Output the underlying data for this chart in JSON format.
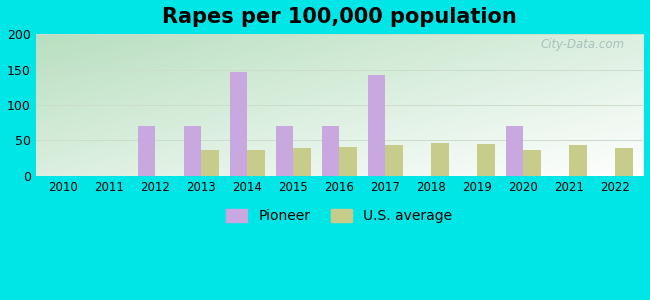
{
  "title": "Rapes per 100,000 population",
  "years": [
    2010,
    2011,
    2012,
    2013,
    2014,
    2015,
    2016,
    2017,
    2018,
    2019,
    2020,
    2021,
    2022
  ],
  "pioneer": [
    0,
    0,
    71,
    71,
    146,
    70,
    70,
    142,
    0,
    0,
    70,
    0,
    0
  ],
  "us_average": [
    0,
    0,
    0,
    36,
    37,
    39,
    41,
    44,
    46,
    45,
    37,
    44,
    40
  ],
  "pioneer_color": "#c9a8e0",
  "us_avg_color": "#c8cc8a",
  "outer_bg": "#00e5e5",
  "ylim": [
    0,
    200
  ],
  "yticks": [
    0,
    50,
    100,
    150,
    200
  ],
  "bar_width": 0.38,
  "legend_pioneer": "Pioneer",
  "legend_us": "U.S. average",
  "title_fontsize": 15,
  "watermark": "City-Data.com"
}
